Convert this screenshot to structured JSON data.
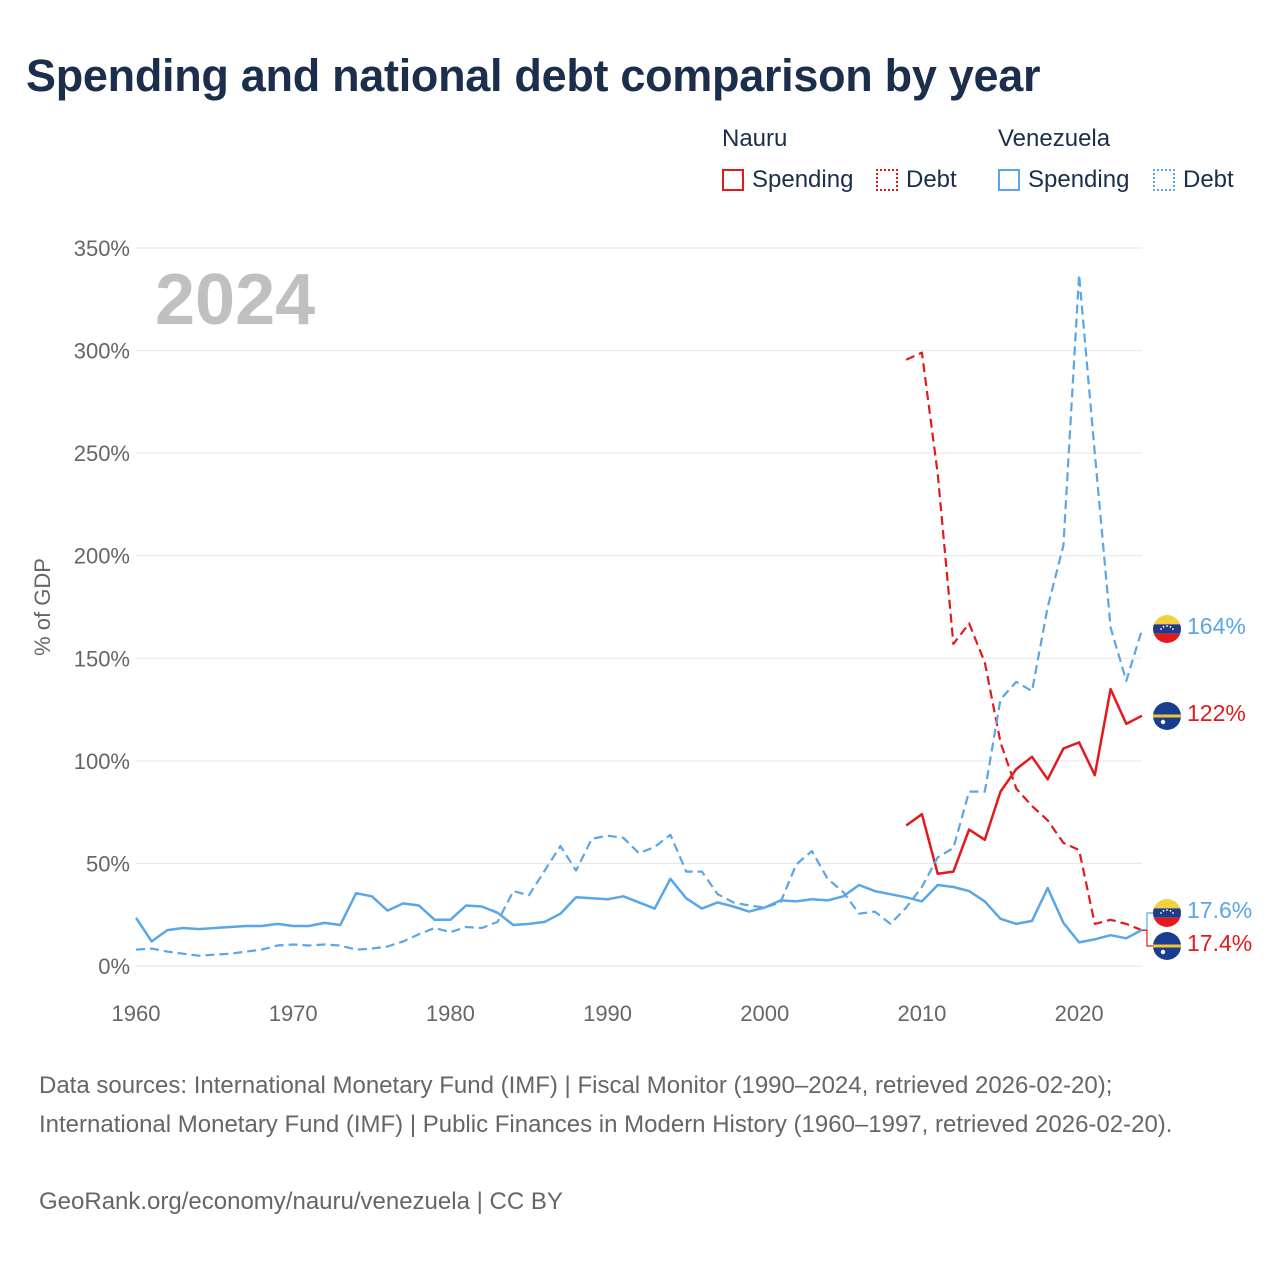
{
  "title": "Spending and national debt comparison by year",
  "colors": {
    "nauru": "#e31a1c",
    "venezuela": "#5aa6e6",
    "grid": "#e6e6e6",
    "axis_text": "#666666",
    "year_watermark": "#c0c0c0",
    "title": "#1b2e4b"
  },
  "legend": {
    "groups": [
      {
        "name": "Nauru",
        "items": [
          {
            "label": "Spending",
            "style": "solid"
          },
          {
            "label": "Debt",
            "style": "dotted"
          }
        ]
      },
      {
        "name": "Venezuela",
        "items": [
          {
            "label": "Spending",
            "style": "solid"
          },
          {
            "label": "Debt",
            "style": "dotted"
          }
        ]
      }
    ]
  },
  "year_watermark": "2024",
  "y_axis_label": "% of GDP",
  "end_labels": {
    "venezuela_debt": "164%",
    "nauru_spending": "122%",
    "venezuela_spending": "17.6%",
    "nauru_debt": "17.4%"
  },
  "footer": {
    "sources": "Data sources: International Monetary Fund (IMF) | Fiscal Monitor (1990–2024, retrieved 2026-02-20); International Monetary Fund (IMF) | Public Finances in Modern History (1960–1997, retrieved 2026-02-20).",
    "credit": "GeoRank.org/economy/nauru/venezuela | CC BY"
  },
  "chart_data": {
    "type": "line",
    "title": "Spending and national debt comparison by year",
    "xlabel": "",
    "ylabel": "% of GDP",
    "xlim": [
      1960,
      2024
    ],
    "ylim": [
      0,
      350
    ],
    "x_ticks": [
      1960,
      1970,
      1980,
      1990,
      2000,
      2010,
      2020
    ],
    "x_tick_labels": [
      "1960",
      "1970",
      "1980",
      "1990",
      "2000",
      "2010",
      "2020"
    ],
    "y_ticks": [
      0,
      50,
      100,
      150,
      200,
      250,
      300,
      350
    ],
    "y_tick_labels": [
      "0%",
      "50%",
      "100%",
      "150%",
      "200%",
      "250%",
      "300%",
      "350%"
    ],
    "grid": true,
    "series": [
      {
        "name": "Nauru Spending",
        "country": "Nauru",
        "metric": "Spending",
        "style": "solid",
        "x": [
          2009,
          2010,
          2011,
          2012,
          2013,
          2014,
          2015,
          2016,
          2017,
          2018,
          2019,
          2020,
          2021,
          2022,
          2023,
          2024
        ],
        "values": [
          68.5,
          74,
          45,
          46,
          66.5,
          61.5,
          85,
          96,
          102,
          91,
          106,
          109,
          93,
          135,
          118,
          122
        ]
      },
      {
        "name": "Nauru Debt",
        "country": "Nauru",
        "metric": "Debt",
        "style": "dashed",
        "x": [
          2009,
          2010,
          2011,
          2012,
          2013,
          2014,
          2015,
          2016,
          2017,
          2018,
          2019,
          2020,
          2021,
          2022,
          2023,
          2024
        ],
        "values": [
          295.5,
          299,
          240,
          157,
          167,
          148,
          109,
          86.5,
          78,
          71,
          60,
          56.5,
          20.5,
          22.5,
          20.5,
          17.4
        ]
      },
      {
        "name": "Venezuela Spending",
        "country": "Venezuela",
        "metric": "Spending",
        "style": "solid",
        "x": [
          1960,
          1961,
          1962,
          1963,
          1964,
          1965,
          1966,
          1967,
          1968,
          1969,
          1970,
          1971,
          1972,
          1973,
          1974,
          1975,
          1976,
          1977,
          1978,
          1979,
          1980,
          1981,
          1982,
          1983,
          1984,
          1985,
          1986,
          1987,
          1988,
          1989,
          1990,
          1991,
          1992,
          1993,
          1994,
          1995,
          1996,
          1997,
          1998,
          1999,
          2000,
          2001,
          2002,
          2003,
          2004,
          2005,
          2006,
          2007,
          2008,
          2009,
          2010,
          2011,
          2012,
          2013,
          2014,
          2015,
          2016,
          2017,
          2018,
          2019,
          2020,
          2021,
          2022,
          2023,
          2024
        ],
        "values": [
          23.5,
          12,
          17.5,
          18.5,
          18,
          18.5,
          19,
          19.5,
          19.5,
          20.5,
          19.5,
          19.5,
          21,
          20,
          35.5,
          34,
          27,
          30.5,
          29.5,
          22.5,
          22.5,
          29.5,
          29,
          26,
          20,
          20.5,
          21.5,
          25.5,
          33.5,
          33,
          32.5,
          34,
          31,
          28,
          42.5,
          33,
          28,
          31,
          29,
          26.5,
          28.5,
          32,
          31.5,
          32.5,
          32,
          34,
          39.5,
          36.5,
          35,
          33.5,
          31.5,
          39.5,
          38.5,
          36.5,
          31.5,
          23,
          20.5,
          22,
          38,
          21,
          11.5,
          13,
          15,
          13.5,
          17.6
        ]
      },
      {
        "name": "Venezuela Debt",
        "country": "Venezuela",
        "metric": "Debt",
        "style": "dashed",
        "x": [
          1960,
          1961,
          1962,
          1963,
          1964,
          1965,
          1966,
          1967,
          1968,
          1969,
          1970,
          1971,
          1972,
          1973,
          1974,
          1975,
          1976,
          1977,
          1978,
          1979,
          1980,
          1981,
          1982,
          1983,
          1984,
          1985,
          1986,
          1987,
          1988,
          1989,
          1990,
          1991,
          1992,
          1993,
          1994,
          1995,
          1996,
          1997,
          1998,
          1999,
          2000,
          2001,
          2002,
          2003,
          2004,
          2005,
          2006,
          2007,
          2008,
          2009,
          2010,
          2011,
          2012,
          2013,
          2014,
          2015,
          2016,
          2017,
          2018,
          2019,
          2020,
          2021,
          2022,
          2023,
          2024
        ],
        "values": [
          8,
          8.5,
          7,
          6,
          5,
          5.5,
          6,
          7,
          8,
          10,
          10.5,
          10,
          10.5,
          10,
          8,
          8.5,
          9.5,
          12,
          15.5,
          18.5,
          16.5,
          19,
          18.5,
          21.5,
          36.5,
          34.5,
          46.5,
          58.5,
          46.5,
          62,
          63.5,
          62.5,
          55,
          58,
          64,
          46,
          46,
          35,
          31,
          29.5,
          28.5,
          31,
          49.5,
          56,
          42.5,
          36,
          25.5,
          26.5,
          20.5,
          28.5,
          38.5,
          53,
          57.5,
          85,
          85,
          130,
          138.5,
          134,
          175,
          205,
          337,
          250,
          165,
          139,
          164
        ]
      }
    ]
  }
}
